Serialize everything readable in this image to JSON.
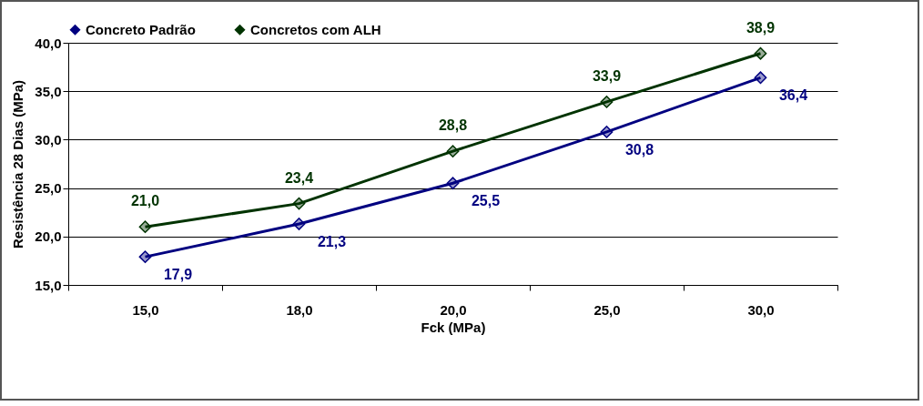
{
  "chart_data": {
    "type": "line",
    "xlabel": "Fck (MPa)",
    "ylabel": "Resistência 28 Dias (MPa)",
    "categories": [
      "15,0",
      "18,0",
      "20,0",
      "25,0",
      "30,0"
    ],
    "series": [
      {
        "name": "Concreto Padrão",
        "color": "#000080",
        "values": [
          17.9,
          21.3,
          25.5,
          30.8,
          36.4
        ],
        "value_labels": [
          "17,9",
          "21,3",
          "25,5",
          "30,8",
          "36,4"
        ]
      },
      {
        "name": "Concretos com ALH",
        "color": "#003300",
        "values": [
          21.0,
          23.4,
          28.8,
          33.9,
          38.9
        ],
        "value_labels": [
          "21,0",
          "23,4",
          "28,8",
          "33,9",
          "38,9"
        ]
      }
    ],
    "ylim": [
      15,
      40
    ],
    "yticks": [
      {
        "value": 15,
        "label": "15,0"
      },
      {
        "value": 20,
        "label": "20,0"
      },
      {
        "value": 25,
        "label": "25,0"
      },
      {
        "value": 30,
        "label": "30,0"
      },
      {
        "value": 35,
        "label": "35,0"
      },
      {
        "value": 40,
        "label": "40,0"
      }
    ],
    "grid": "y",
    "legend": "top",
    "marker": "diamond",
    "line_style": "solid"
  }
}
